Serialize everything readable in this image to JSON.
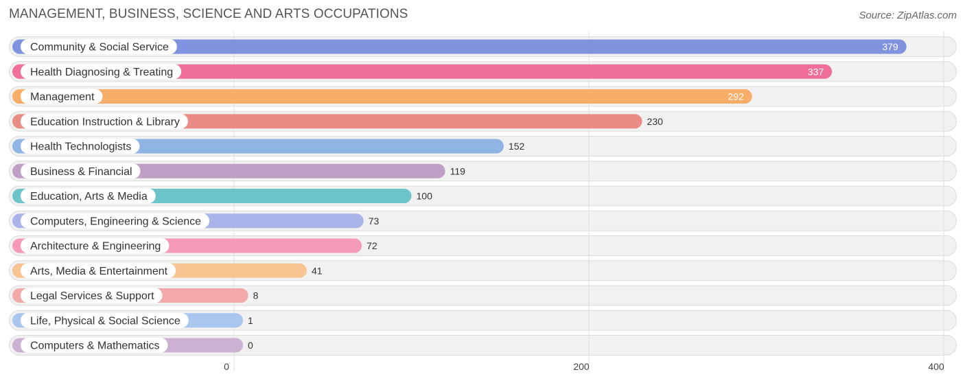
{
  "header": {
    "title": "MANAGEMENT, BUSINESS, SCIENCE AND ARTS OCCUPATIONS",
    "source": "Source: ZipAtlas.com"
  },
  "chart_data": {
    "type": "bar",
    "orientation": "horizontal",
    "title": "MANAGEMENT, BUSINESS, SCIENCE AND ARTS OCCUPATIONS",
    "categories": [
      "Community & Social Service",
      "Health Diagnosing & Treating",
      "Management",
      "Education Instruction & Library",
      "Health Technologists",
      "Business & Financial",
      "Education, Arts & Media",
      "Computers, Engineering & Science",
      "Architecture & Engineering",
      "Arts, Media & Entertainment",
      "Legal Services & Support",
      "Life, Physical & Social Science",
      "Computers & Mathematics"
    ],
    "values": [
      379,
      337,
      292,
      230,
      152,
      119,
      100,
      73,
      72,
      41,
      8,
      1,
      0
    ],
    "value_labels": [
      "379",
      "337",
      "292",
      "230",
      "152",
      "119",
      "100",
      "73",
      "72",
      "41",
      "8",
      "1",
      "0"
    ],
    "colors": [
      "#7f93df",
      "#f06e9a",
      "#f8ae68",
      "#ea8c86",
      "#8fb5e4",
      "#c09fc6",
      "#6cc4c9",
      "#aab3ea",
      "#f59ab7",
      "#f8c592",
      "#f2a9a8",
      "#a9c6ee",
      "#cdb1d4"
    ],
    "xlim": [
      0,
      400
    ],
    "xticks": [
      0,
      200,
      400
    ],
    "xtick_labels": [
      "0",
      "200",
      "400"
    ],
    "grid": true,
    "legend": "none"
  }
}
